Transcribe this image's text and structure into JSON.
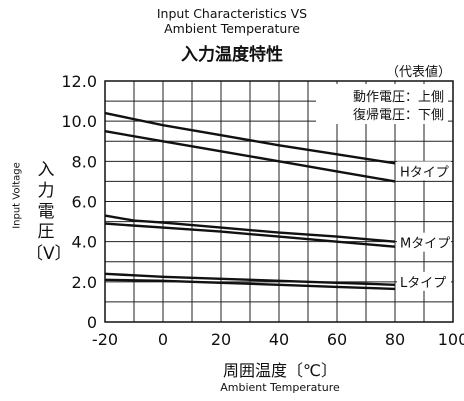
{
  "title_lines": [
    "Input Characteristics VS",
    "Ambient Temperature"
  ],
  "title_jp": "入力温度特性",
  "typical_note": "（代表値）",
  "legend_notes": [
    "動作電圧：上側",
    "復帰電圧：下側"
  ],
  "ylabel_en": "Input Voltage",
  "ylabel_jp_chars": [
    "入",
    "力",
    "電",
    "圧",
    "〔V〕"
  ],
  "xlabel_jp": "周囲温度〔℃〕",
  "xlabel_en": "Ambient Temperature",
  "chart_data": {
    "type": "line",
    "xlim": [
      -20,
      100
    ],
    "ylim": [
      0,
      12
    ],
    "x_ticks": [
      -20,
      0,
      20,
      40,
      60,
      80,
      100
    ],
    "y_ticks": [
      0,
      2.0,
      4.0,
      6.0,
      8.0,
      10.0,
      12.0
    ],
    "x_tick_labels": [
      "-20",
      "0",
      "20",
      "40",
      "60",
      "80",
      "100"
    ],
    "y_tick_labels": [
      "0",
      "2.0",
      "4.0",
      "6.0",
      "8.0",
      "10.0",
      "12.0"
    ],
    "x_minor_step": 10,
    "y_minor_step": 1,
    "grid": true,
    "series": [
      {
        "name": "Hタイプ",
        "x": [
          -20,
          0,
          20,
          40,
          60,
          80
        ],
        "y": [
          10.4,
          9.8,
          9.3,
          8.8,
          8.35,
          7.9
        ],
        "label_y": 7.45
      },
      {
        "name": "",
        "x": [
          -20,
          0,
          20,
          40,
          60,
          80
        ],
        "y": [
          9.5,
          9.0,
          8.5,
          8.0,
          7.5,
          7.0
        ]
      },
      {
        "name": "Mタイプ",
        "x": [
          -20,
          -10,
          0,
          20,
          40,
          60,
          80
        ],
        "y": [
          5.3,
          5.05,
          4.95,
          4.7,
          4.45,
          4.25,
          4.0
        ],
        "label_y": 3.9
      },
      {
        "name": "",
        "x": [
          -20,
          0,
          20,
          40,
          60,
          80
        ],
        "y": [
          4.9,
          4.7,
          4.5,
          4.25,
          4.0,
          3.75
        ]
      },
      {
        "name": "Lタイプ",
        "x": [
          -20,
          0,
          20,
          40,
          60,
          80
        ],
        "y": [
          2.4,
          2.25,
          2.15,
          2.05,
          1.95,
          1.85
        ],
        "label_y": 1.95
      },
      {
        "name": "",
        "x": [
          -20,
          0,
          20,
          40,
          60,
          80
        ],
        "y": [
          2.1,
          2.05,
          1.95,
          1.85,
          1.75,
          1.65
        ]
      }
    ]
  }
}
